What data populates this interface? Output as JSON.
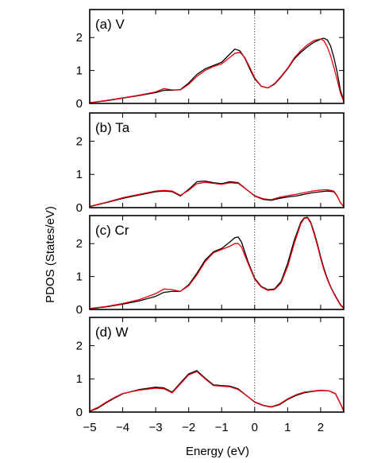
{
  "chart_data": {
    "type": "line",
    "xlabel": "Energy (eV)",
    "ylabel": "PDOS (States/eV)",
    "xlim": [
      -5,
      2.7
    ],
    "xticks": [
      -5,
      -4,
      -3,
      -2,
      -1,
      0,
      1,
      2
    ],
    "xtick_labels": [
      "−5",
      "−4",
      "−3",
      "−2",
      "−1",
      "0",
      "1",
      "2"
    ],
    "yticks": [
      0,
      1,
      2
    ],
    "ylim": [
      0,
      2.85
    ],
    "zero_line": 0,
    "grid": false,
    "series_colors": [
      "#000000",
      "#e8000b"
    ],
    "panels": [
      {
        "label": "(a) V",
        "series": [
          {
            "x": [
              -5,
              -4.5,
              -4,
              -3.5,
              -3,
              -2.75,
              -2.5,
              -2.25,
              -2,
              -1.75,
              -1.5,
              -1.25,
              -1,
              -0.75,
              -0.6,
              -0.45,
              -0.3,
              -0.15,
              0,
              0.2,
              0.4,
              0.6,
              0.8,
              1,
              1.2,
              1.4,
              1.6,
              1.8,
              2,
              2.1,
              2.2,
              2.3,
              2.4,
              2.5,
              2.6,
              2.7
            ],
            "y": [
              0.02,
              0.08,
              0.16,
              0.24,
              0.33,
              0.4,
              0.4,
              0.42,
              0.62,
              0.88,
              1.05,
              1.15,
              1.25,
              1.5,
              1.65,
              1.6,
              1.38,
              1.05,
              0.75,
              0.52,
              0.47,
              0.58,
              0.8,
              1.05,
              1.35,
              1.55,
              1.72,
              1.86,
              1.95,
              1.98,
              1.93,
              1.75,
              1.4,
              0.95,
              0.4,
              0.08
            ]
          },
          {
            "x": [
              -5,
              -4.5,
              -4,
              -3.5,
              -3,
              -2.75,
              -2.5,
              -2.25,
              -2,
              -1.75,
              -1.5,
              -1.25,
              -1,
              -0.75,
              -0.6,
              -0.45,
              -0.3,
              -0.15,
              0,
              0.2,
              0.4,
              0.6,
              0.8,
              1,
              1.2,
              1.4,
              1.6,
              1.8,
              2,
              2.1,
              2.2,
              2.3,
              2.4,
              2.5,
              2.6,
              2.7
            ],
            "y": [
              0.02,
              0.09,
              0.17,
              0.25,
              0.35,
              0.45,
              0.41,
              0.41,
              0.58,
              0.82,
              1.0,
              1.12,
              1.2,
              1.4,
              1.52,
              1.55,
              1.4,
              1.1,
              0.78,
              0.52,
              0.47,
              0.6,
              0.82,
              1.07,
              1.38,
              1.6,
              1.78,
              1.91,
              1.96,
              1.9,
              1.72,
              1.45,
              1.1,
              0.72,
              0.32,
              0.06
            ]
          }
        ]
      },
      {
        "label": "(b) Ta",
        "series": [
          {
            "x": [
              -5,
              -4.5,
              -4,
              -3.5,
              -3,
              -2.75,
              -2.5,
              -2.25,
              -2,
              -1.75,
              -1.5,
              -1.25,
              -1,
              -0.75,
              -0.5,
              -0.25,
              0,
              0.25,
              0.5,
              0.75,
              1,
              1.25,
              1.5,
              1.75,
              2,
              2.2,
              2.4,
              2.5,
              2.6,
              2.7
            ],
            "y": [
              0.03,
              0.15,
              0.28,
              0.38,
              0.48,
              0.5,
              0.48,
              0.35,
              0.55,
              0.78,
              0.8,
              0.75,
              0.72,
              0.78,
              0.75,
              0.55,
              0.35,
              0.25,
              0.22,
              0.28,
              0.32,
              0.35,
              0.4,
              0.45,
              0.48,
              0.5,
              0.48,
              0.35,
              0.15,
              0.03
            ]
          },
          {
            "x": [
              -5,
              -4.5,
              -4,
              -3.5,
              -3,
              -2.75,
              -2.5,
              -2.25,
              -2,
              -1.75,
              -1.5,
              -1.25,
              -1,
              -0.75,
              -0.5,
              -0.25,
              0,
              0.25,
              0.5,
              0.75,
              1,
              1.25,
              1.5,
              1.75,
              2,
              2.2,
              2.4,
              2.5,
              2.6,
              2.7
            ],
            "y": [
              0.04,
              0.16,
              0.3,
              0.4,
              0.5,
              0.52,
              0.5,
              0.37,
              0.52,
              0.72,
              0.76,
              0.73,
              0.7,
              0.75,
              0.73,
              0.55,
              0.36,
              0.27,
              0.24,
              0.31,
              0.36,
              0.4,
              0.45,
              0.5,
              0.53,
              0.54,
              0.5,
              0.36,
              0.15,
              0.03
            ]
          }
        ]
      },
      {
        "label": "(c) Cr",
        "series": [
          {
            "x": [
              -5,
              -4.5,
              -4,
              -3.5,
              -3,
              -2.75,
              -2.5,
              -2.25,
              -2,
              -1.75,
              -1.5,
              -1.25,
              -1,
              -0.75,
              -0.6,
              -0.5,
              -0.4,
              -0.2,
              0,
              0.2,
              0.4,
              0.6,
              0.8,
              1,
              1.2,
              1.4,
              1.5,
              1.6,
              1.7,
              1.8,
              1.9,
              2,
              2.1,
              2.2,
              2.3,
              2.4,
              2.5,
              2.6,
              2.7
            ],
            "y": [
              0.02,
              0.08,
              0.16,
              0.26,
              0.4,
              0.52,
              0.55,
              0.55,
              0.75,
              1.1,
              1.5,
              1.75,
              1.85,
              2.05,
              2.18,
              2.2,
              2.05,
              1.45,
              0.95,
              0.7,
              0.6,
              0.62,
              0.85,
              1.4,
              2.1,
              2.65,
              2.78,
              2.8,
              2.65,
              2.35,
              2.0,
              1.6,
              1.25,
              0.95,
              0.7,
              0.5,
              0.32,
              0.15,
              0.04
            ]
          },
          {
            "x": [
              -5,
              -4.5,
              -4,
              -3.5,
              -3,
              -2.75,
              -2.5,
              -2.25,
              -2,
              -1.75,
              -1.5,
              -1.25,
              -1,
              -0.75,
              -0.6,
              -0.5,
              -0.4,
              -0.2,
              0,
              0.2,
              0.4,
              0.6,
              0.8,
              1,
              1.2,
              1.4,
              1.5,
              1.6,
              1.7,
              1.8,
              1.9,
              2,
              2.1,
              2.2,
              2.3,
              2.4,
              2.5,
              2.6,
              2.7
            ],
            "y": [
              0.03,
              0.09,
              0.18,
              0.3,
              0.48,
              0.62,
              0.6,
              0.55,
              0.72,
              1.05,
              1.45,
              1.72,
              1.82,
              1.92,
              2.0,
              2.0,
              1.9,
              1.4,
              0.92,
              0.68,
              0.58,
              0.6,
              0.8,
              1.3,
              2.0,
              2.6,
              2.76,
              2.78,
              2.62,
              2.3,
              1.95,
              1.55,
              1.2,
              0.92,
              0.68,
              0.48,
              0.3,
              0.13,
              0.03
            ]
          }
        ]
      },
      {
        "label": "(d) W",
        "series": [
          {
            "x": [
              -5,
              -4.75,
              -4.5,
              -4.25,
              -4,
              -3.5,
              -3,
              -2.75,
              -2.5,
              -2.25,
              -2,
              -1.75,
              -1.5,
              -1.25,
              -1,
              -0.75,
              -0.5,
              -0.25,
              0,
              0.25,
              0.5,
              0.75,
              1,
              1.25,
              1.5,
              1.75,
              2,
              2.25,
              2.45,
              2.6,
              2.7
            ],
            "y": [
              0.02,
              0.12,
              0.28,
              0.42,
              0.55,
              0.68,
              0.75,
              0.73,
              0.6,
              0.88,
              1.15,
              1.25,
              1.02,
              0.82,
              0.8,
              0.78,
              0.7,
              0.5,
              0.3,
              0.2,
              0.15,
              0.22,
              0.38,
              0.5,
              0.58,
              0.62,
              0.65,
              0.64,
              0.55,
              0.25,
              0.03
            ]
          },
          {
            "x": [
              -5,
              -4.75,
              -4.5,
              -4.25,
              -4,
              -3.5,
              -3,
              -2.75,
              -2.5,
              -2.25,
              -2,
              -1.75,
              -1.5,
              -1.25,
              -1,
              -0.75,
              -0.5,
              -0.25,
              0,
              0.25,
              0.5,
              0.75,
              1,
              1.25,
              1.5,
              1.75,
              2,
              2.25,
              2.45,
              2.6,
              2.7
            ],
            "y": [
              0.03,
              0.14,
              0.3,
              0.44,
              0.56,
              0.66,
              0.72,
              0.7,
              0.58,
              0.85,
              1.12,
              1.22,
              1.0,
              0.8,
              0.78,
              0.76,
              0.68,
              0.5,
              0.31,
              0.21,
              0.16,
              0.24,
              0.4,
              0.52,
              0.6,
              0.63,
              0.66,
              0.64,
              0.56,
              0.26,
              0.03
            ]
          }
        ]
      }
    ]
  }
}
